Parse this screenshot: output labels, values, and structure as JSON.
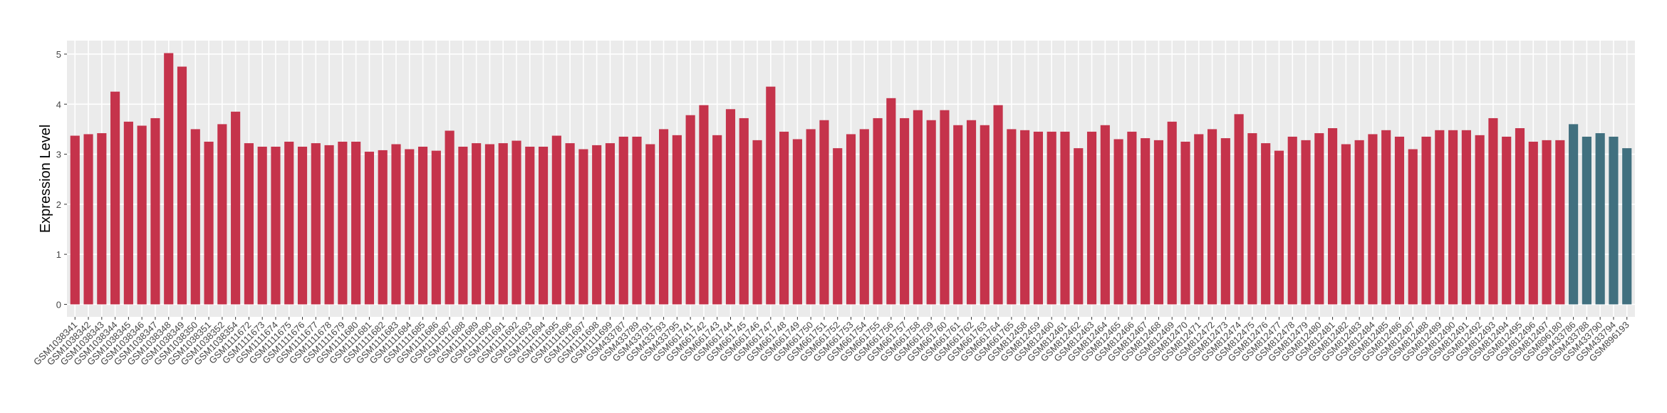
{
  "chart_data": {
    "type": "bar",
    "y_label": "Expression Level",
    "categories": [
      "GSM1038341",
      "GSM1038342",
      "GSM1038343",
      "GSM1038344",
      "GSM1038345",
      "GSM1038346",
      "GSM1038347",
      "GSM1038348",
      "GSM1038349",
      "GSM1038350",
      "GSM1038351",
      "GSM1038352",
      "GSM1038354",
      "GSM1111672",
      "GSM1111673",
      "GSM1111674",
      "GSM1111675",
      "GSM1111676",
      "GSM1111677",
      "GSM1111678",
      "GSM1111679",
      "GSM1111680",
      "GSM1111681",
      "GSM1111682",
      "GSM1111683",
      "GSM1111684",
      "GSM1111685",
      "GSM1111686",
      "GSM1111687",
      "GSM1111688",
      "GSM1111689",
      "GSM1111690",
      "GSM1111691",
      "GSM1111692",
      "GSM1111693",
      "GSM1111694",
      "GSM1111695",
      "GSM1111696",
      "GSM1111697",
      "GSM1111698",
      "GSM1111699",
      "GSM433787",
      "GSM433789",
      "GSM433791",
      "GSM433793",
      "GSM433795",
      "GSM661741",
      "GSM661742",
      "GSM661743",
      "GSM661744",
      "GSM661745",
      "GSM661746",
      "GSM661747",
      "GSM661748",
      "GSM661749",
      "GSM661750",
      "GSM661751",
      "GSM661752",
      "GSM661753",
      "GSM661754",
      "GSM661755",
      "GSM661756",
      "GSM661757",
      "GSM661758",
      "GSM661759",
      "GSM661760",
      "GSM661761",
      "GSM661762",
      "GSM661763",
      "GSM661764",
      "GSM661765",
      "GSM812458",
      "GSM812459",
      "GSM812460",
      "GSM812461",
      "GSM812462",
      "GSM812463",
      "GSM812464",
      "GSM812465",
      "GSM812466",
      "GSM812467",
      "GSM812468",
      "GSM812469",
      "GSM812470",
      "GSM812471",
      "GSM812472",
      "GSM812473",
      "GSM812474",
      "GSM812475",
      "GSM812476",
      "GSM812477",
      "GSM812478",
      "GSM812479",
      "GSM812480",
      "GSM812481",
      "GSM812482",
      "GSM812483",
      "GSM812484",
      "GSM812485",
      "GSM812486",
      "GSM812487",
      "GSM812488",
      "GSM812489",
      "GSM812490",
      "GSM812491",
      "GSM812492",
      "GSM812493",
      "GSM812494",
      "GSM812495",
      "GSM812496",
      "GSM812497",
      "GSM896180",
      "GSM433786",
      "GSM433788",
      "GSM433790",
      "GSM433794",
      "GSM896193"
    ],
    "values": [
      3.37,
      3.4,
      3.42,
      4.25,
      3.65,
      3.57,
      3.72,
      5.02,
      4.75,
      3.5,
      3.25,
      3.6,
      3.85,
      3.22,
      3.15,
      3.15,
      3.25,
      3.15,
      3.22,
      3.18,
      3.25,
      3.25,
      3.05,
      3.08,
      3.2,
      3.1,
      3.15,
      3.07,
      3.47,
      3.15,
      3.22,
      3.2,
      3.22,
      3.27,
      3.15,
      3.15,
      3.37,
      3.22,
      3.1,
      3.18,
      3.22,
      3.35,
      3.35,
      3.2,
      3.5,
      3.38,
      3.78,
      3.98,
      3.38,
      3.9,
      3.72,
      3.28,
      4.35,
      3.45,
      3.3,
      3.5,
      3.68,
      3.12,
      3.4,
      3.5,
      3.72,
      4.12,
      3.72,
      3.88,
      3.68,
      3.88,
      3.58,
      3.68,
      3.58,
      3.98,
      3.5,
      3.48,
      3.45,
      3.45,
      3.45,
      3.12,
      3.45,
      3.58,
      3.3,
      3.45,
      3.32,
      3.28,
      3.65,
      3.25,
      3.4,
      3.5,
      3.32,
      3.8,
      3.42,
      3.22,
      3.07,
      3.35,
      3.28,
      3.42,
      3.52,
      3.2,
      3.28,
      3.4,
      3.48,
      3.35,
      3.1,
      3.35,
      3.48,
      3.48,
      3.48,
      3.38,
      3.72,
      3.35,
      3.52,
      3.25,
      3.28,
      3.28,
      3.6,
      3.35,
      3.42,
      3.35,
      3.12
    ],
    "colors": [
      "#c5334b",
      "#c5334b",
      "#c5334b",
      "#c5334b",
      "#c5334b",
      "#c5334b",
      "#c5334b",
      "#c5334b",
      "#c5334b",
      "#c5334b",
      "#c5334b",
      "#c5334b",
      "#c5334b",
      "#c5334b",
      "#c5334b",
      "#c5334b",
      "#c5334b",
      "#c5334b",
      "#c5334b",
      "#c5334b",
      "#c5334b",
      "#c5334b",
      "#c5334b",
      "#c5334b",
      "#c5334b",
      "#c5334b",
      "#c5334b",
      "#c5334b",
      "#c5334b",
      "#c5334b",
      "#c5334b",
      "#c5334b",
      "#c5334b",
      "#c5334b",
      "#c5334b",
      "#c5334b",
      "#c5334b",
      "#c5334b",
      "#c5334b",
      "#c5334b",
      "#c5334b",
      "#c5334b",
      "#c5334b",
      "#c5334b",
      "#c5334b",
      "#c5334b",
      "#c5334b",
      "#c5334b",
      "#c5334b",
      "#c5334b",
      "#c5334b",
      "#c5334b",
      "#c5334b",
      "#c5334b",
      "#c5334b",
      "#c5334b",
      "#c5334b",
      "#c5334b",
      "#c5334b",
      "#c5334b",
      "#c5334b",
      "#c5334b",
      "#c5334b",
      "#c5334b",
      "#c5334b",
      "#c5334b",
      "#c5334b",
      "#c5334b",
      "#c5334b",
      "#c5334b",
      "#c5334b",
      "#c5334b",
      "#c5334b",
      "#c5334b",
      "#c5334b",
      "#c5334b",
      "#c5334b",
      "#c5334b",
      "#c5334b",
      "#c5334b",
      "#c5334b",
      "#c5334b",
      "#c5334b",
      "#c5334b",
      "#c5334b",
      "#c5334b",
      "#c5334b",
      "#c5334b",
      "#c5334b",
      "#c5334b",
      "#c5334b",
      "#c5334b",
      "#c5334b",
      "#c5334b",
      "#c5334b",
      "#c5334b",
      "#c5334b",
      "#c5334b",
      "#c5334b",
      "#c5334b",
      "#c5334b",
      "#c5334b",
      "#c5334b",
      "#c5334b",
      "#c5334b",
      "#c5334b",
      "#c5334b",
      "#c5334b",
      "#c5334b",
      "#c5334b",
      "#c5334b",
      "#c5334b",
      "#41707f",
      "#41707f",
      "#41707f",
      "#41707f",
      "#41707f"
    ],
    "ylim": [
      -0.25,
      5.27
    ],
    "yticks": [
      0,
      1,
      2,
      3,
      4,
      5
    ],
    "grid": true
  }
}
